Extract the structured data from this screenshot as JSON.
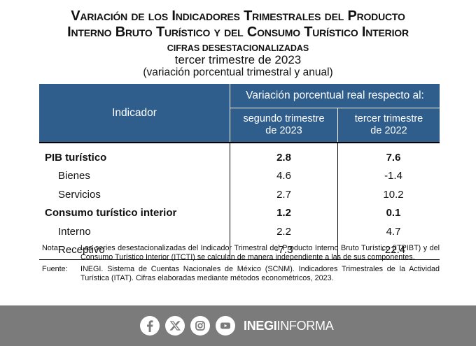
{
  "title": {
    "line1": "Variación de los Indicadores Trimestrales del Producto",
    "line2": "Interno Bruto Turístico y del Consumo Turístico Interior",
    "line3": "CIFRAS DESESTACIONALIZADAS",
    "line4": "tercer trimestre de 2023",
    "line5": "(variación porcentual trimestral y anual)"
  },
  "table": {
    "indicator_header": "Indicador",
    "group_header": "Variación porcentual real respecto al:",
    "col1_line1": "segundo trimestre",
    "col1_line2": "de 2023",
    "col2_line1": "tercer trimestre",
    "col2_line2": "de 2022",
    "rows": [
      {
        "label": "PIB turístico",
        "v1": "2.8",
        "v2": "7.6"
      },
      {
        "label": "Bienes",
        "v1": "4.6",
        "v2": "-1.4"
      },
      {
        "label": "Servicios",
        "v1": "2.7",
        "v2": "10.2"
      },
      {
        "label": "Consumo turístico interior",
        "v1": "1.2",
        "v2": "0.1"
      },
      {
        "label": "Interno",
        "v1": "2.2",
        "v2": "4.7"
      },
      {
        "label": "Receptivo",
        "v1": "-7.3",
        "v2": "-22.4"
      }
    ]
  },
  "notes": {
    "note_label": "Nota:",
    "note_text": "Las series desestacionalizadas del Indicador Trimestral del Producto Interno Bruto Turístico (ITPIBT) y del Consumo Turístico Interior (ITCTI) se calculan de manera independiente a las de sus componentes.",
    "source_label": "Fuente:",
    "source_text": "INEGI. Sistema de Cuentas Nacionales de México (SCNM). Indicadores Trimestrales de la Actividad Turística (ITAT). Cifras elaboradas mediante métodos econométricos, 2023."
  },
  "footer": {
    "brand_bold": "INEGI",
    "brand_rest": "INFORMA",
    "icons": [
      "facebook-icon",
      "x-icon",
      "instagram-icon",
      "youtube-icon"
    ],
    "background_color": "#7b7b7b",
    "header_color": "#2f5d8c"
  }
}
